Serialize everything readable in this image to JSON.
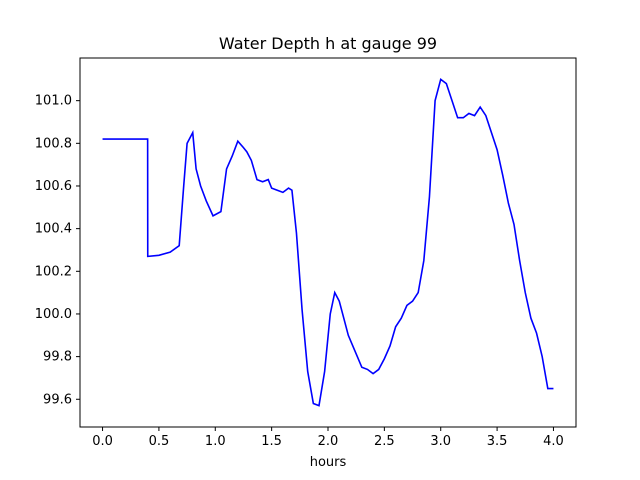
{
  "chart_data": {
    "type": "line",
    "title": "Water Depth h at gauge 99",
    "xlabel": "hours",
    "ylabel": "",
    "xlim": [
      -0.2,
      4.2
    ],
    "ylim": [
      99.47,
      101.2
    ],
    "x_ticks": [
      0.0,
      0.5,
      1.0,
      1.5,
      2.0,
      2.5,
      3.0,
      3.5,
      4.0
    ],
    "x_tick_labels": [
      "0.0",
      "0.5",
      "1.0",
      "1.5",
      "2.0",
      "2.5",
      "3.0",
      "3.5",
      "4.0"
    ],
    "y_ticks": [
      99.6,
      99.8,
      100.0,
      100.2,
      100.4,
      100.6,
      100.8,
      101.0
    ],
    "y_tick_labels": [
      "99.6",
      "99.8",
      "100.0",
      "100.2",
      "100.4",
      "100.6",
      "100.8",
      "101.0"
    ],
    "grid": false,
    "series": [
      {
        "color": "#0000ff",
        "x": [
          0.0,
          0.2,
          0.4,
          0.401,
          0.5,
          0.6,
          0.68,
          0.72,
          0.75,
          0.8,
          0.83,
          0.87,
          0.92,
          0.98,
          1.05,
          1.1,
          1.15,
          1.2,
          1.25,
          1.28,
          1.32,
          1.37,
          1.42,
          1.47,
          1.5,
          1.55,
          1.6,
          1.65,
          1.68,
          1.72,
          1.77,
          1.82,
          1.87,
          1.92,
          1.97,
          2.02,
          2.06,
          2.1,
          2.14,
          2.18,
          2.22,
          2.26,
          2.3,
          2.35,
          2.4,
          2.45,
          2.5,
          2.55,
          2.6,
          2.65,
          2.7,
          2.75,
          2.8,
          2.85,
          2.9,
          2.95,
          3.0,
          3.05,
          3.1,
          3.15,
          3.2,
          3.25,
          3.3,
          3.35,
          3.4,
          3.45,
          3.5,
          3.55,
          3.6,
          3.65,
          3.7,
          3.75,
          3.8,
          3.85,
          3.9,
          3.95,
          4.0
        ],
        "y": [
          100.82,
          100.82,
          100.82,
          100.27,
          100.275,
          100.29,
          100.32,
          100.6,
          100.8,
          100.85,
          100.68,
          100.6,
          100.53,
          100.46,
          100.48,
          100.68,
          100.74,
          100.81,
          100.78,
          100.76,
          100.72,
          100.63,
          100.62,
          100.63,
          100.59,
          100.58,
          100.57,
          100.59,
          100.58,
          100.38,
          100.02,
          99.73,
          99.58,
          99.57,
          99.73,
          100.0,
          100.1,
          100.06,
          99.98,
          99.9,
          99.85,
          99.8,
          99.75,
          99.74,
          99.72,
          99.74,
          99.79,
          99.85,
          99.94,
          99.98,
          100.04,
          100.06,
          100.1,
          100.25,
          100.55,
          101.0,
          101.1,
          101.08,
          101.0,
          100.92,
          100.92,
          100.94,
          100.93,
          100.97,
          100.93,
          100.85,
          100.77,
          100.65,
          100.52,
          100.42,
          100.25,
          100.1,
          99.98,
          99.91,
          99.8,
          99.65,
          99.65
        ]
      }
    ]
  }
}
